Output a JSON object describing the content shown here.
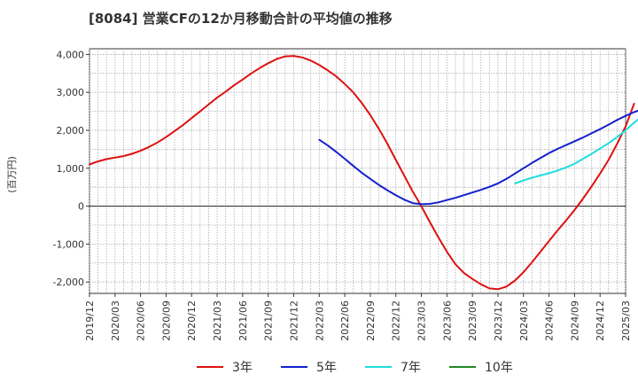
{
  "chart_data": {
    "type": "line",
    "title": "[8084]  営業CFの12か月移動合計の平均値の推移",
    "ylabel": "(百万円)",
    "xlabel": "",
    "ylim": [
      -2300,
      4150
    ],
    "yticks": [
      4000,
      3000,
      2000,
      1000,
      0,
      -1000,
      -2000
    ],
    "ytick_labels": [
      "4,000",
      "3,000",
      "2,000",
      "1,000",
      "0",
      "-1,000",
      "-2,000"
    ],
    "xticks": [
      "2019/12",
      "2020/03",
      "2020/06",
      "2020/09",
      "2020/12",
      "2021/03",
      "2021/06",
      "2021/09",
      "2021/12",
      "2022/03",
      "2022/06",
      "2022/09",
      "2022/12",
      "2023/03",
      "2023/06",
      "2023/09",
      "2023/12",
      "2024/03",
      "2024/06",
      "2024/09",
      "2024/12",
      "2025/03"
    ],
    "grid": true,
    "legend_position": "bottom",
    "series": [
      {
        "name": "3年",
        "color": "#dd1111",
        "points": [
          [
            "2019/12",
            1100
          ],
          [
            "2020/01",
            1180
          ],
          [
            "2020/02",
            1240
          ],
          [
            "2020/03",
            1280
          ],
          [
            "2020/04",
            1320
          ],
          [
            "2020/05",
            1380
          ],
          [
            "2020/06",
            1460
          ],
          [
            "2020/07",
            1560
          ],
          [
            "2020/08",
            1680
          ],
          [
            "2020/09",
            1820
          ],
          [
            "2020/10",
            1980
          ],
          [
            "2020/11",
            2140
          ],
          [
            "2020/12",
            2320
          ],
          [
            "2021/01",
            2500
          ],
          [
            "2021/02",
            2680
          ],
          [
            "2021/03",
            2860
          ],
          [
            "2021/04",
            3020
          ],
          [
            "2021/05",
            3190
          ],
          [
            "2021/06",
            3340
          ],
          [
            "2021/07",
            3500
          ],
          [
            "2021/08",
            3640
          ],
          [
            "2021/09",
            3770
          ],
          [
            "2021/10",
            3880
          ],
          [
            "2021/11",
            3950
          ],
          [
            "2021/12",
            3960
          ],
          [
            "2022/01",
            3920
          ],
          [
            "2022/02",
            3840
          ],
          [
            "2022/03",
            3720
          ],
          [
            "2022/04",
            3580
          ],
          [
            "2022/05",
            3420
          ],
          [
            "2022/06",
            3220
          ],
          [
            "2022/07",
            3000
          ],
          [
            "2022/08",
            2720
          ],
          [
            "2022/09",
            2400
          ],
          [
            "2022/10",
            2040
          ],
          [
            "2022/11",
            1650
          ],
          [
            "2022/12",
            1220
          ],
          [
            "2023/01",
            800
          ],
          [
            "2023/02",
            380
          ],
          [
            "2023/03",
            0
          ],
          [
            "2023/04",
            -420
          ],
          [
            "2023/05",
            -820
          ],
          [
            "2023/06",
            -1200
          ],
          [
            "2023/07",
            -1530
          ],
          [
            "2023/08",
            -1760
          ],
          [
            "2023/09",
            -1920
          ],
          [
            "2023/10",
            -2060
          ],
          [
            "2023/11",
            -2170
          ],
          [
            "2023/12",
            -2190
          ],
          [
            "2024/01",
            -2120
          ],
          [
            "2024/02",
            -1960
          ],
          [
            "2024/03",
            -1740
          ],
          [
            "2024/04",
            -1480
          ],
          [
            "2024/05",
            -1200
          ],
          [
            "2024/06",
            -920
          ],
          [
            "2024/07",
            -640
          ],
          [
            "2024/08",
            -380
          ],
          [
            "2024/09",
            -100
          ],
          [
            "2024/10",
            200
          ],
          [
            "2024/11",
            520
          ],
          [
            "2024/12",
            860
          ],
          [
            "2025/01",
            1220
          ],
          [
            "2025/02",
            1640
          ],
          [
            "2025/03",
            2100
          ],
          [
            "2025/04",
            2700
          ]
        ]
      },
      {
        "name": "5年",
        "color": "#1122cc",
        "points": [
          [
            "2022/03",
            1750
          ],
          [
            "2022/04",
            1600
          ],
          [
            "2022/05",
            1430
          ],
          [
            "2022/06",
            1250
          ],
          [
            "2022/07",
            1060
          ],
          [
            "2022/08",
            880
          ],
          [
            "2022/09",
            720
          ],
          [
            "2022/10",
            560
          ],
          [
            "2022/11",
            420
          ],
          [
            "2022/12",
            290
          ],
          [
            "2023/01",
            170
          ],
          [
            "2023/02",
            80
          ],
          [
            "2023/03",
            50
          ],
          [
            "2023/04",
            60
          ],
          [
            "2023/05",
            100
          ],
          [
            "2023/06",
            160
          ],
          [
            "2023/07",
            220
          ],
          [
            "2023/08",
            290
          ],
          [
            "2023/09",
            360
          ],
          [
            "2023/10",
            430
          ],
          [
            "2023/11",
            510
          ],
          [
            "2023/12",
            600
          ],
          [
            "2024/01",
            720
          ],
          [
            "2024/02",
            860
          ],
          [
            "2024/03",
            1000
          ],
          [
            "2024/04",
            1140
          ],
          [
            "2024/05",
            1270
          ],
          [
            "2024/06",
            1400
          ],
          [
            "2024/07",
            1510
          ],
          [
            "2024/08",
            1610
          ],
          [
            "2024/09",
            1710
          ],
          [
            "2024/10",
            1810
          ],
          [
            "2024/11",
            1920
          ],
          [
            "2024/12",
            2030
          ],
          [
            "2025/01",
            2150
          ],
          [
            "2025/02",
            2270
          ],
          [
            "2025/03",
            2380
          ],
          [
            "2025/04",
            2480
          ],
          [
            "2025/05",
            2560
          ]
        ]
      },
      {
        "name": "7年",
        "color": "#22dddd",
        "points": [
          [
            "2024/02",
            600
          ],
          [
            "2024/03",
            680
          ],
          [
            "2024/04",
            750
          ],
          [
            "2024/05",
            810
          ],
          [
            "2024/06",
            870
          ],
          [
            "2024/07",
            940
          ],
          [
            "2024/08",
            1020
          ],
          [
            "2024/09",
            1120
          ],
          [
            "2024/10",
            1250
          ],
          [
            "2024/11",
            1380
          ],
          [
            "2024/12",
            1520
          ],
          [
            "2025/01",
            1660
          ],
          [
            "2025/02",
            1820
          ],
          [
            "2025/03",
            2000
          ],
          [
            "2025/04",
            2200
          ],
          [
            "2025/05",
            2380
          ]
        ]
      },
      {
        "name": "10年",
        "color": "#228822",
        "points": []
      }
    ]
  }
}
